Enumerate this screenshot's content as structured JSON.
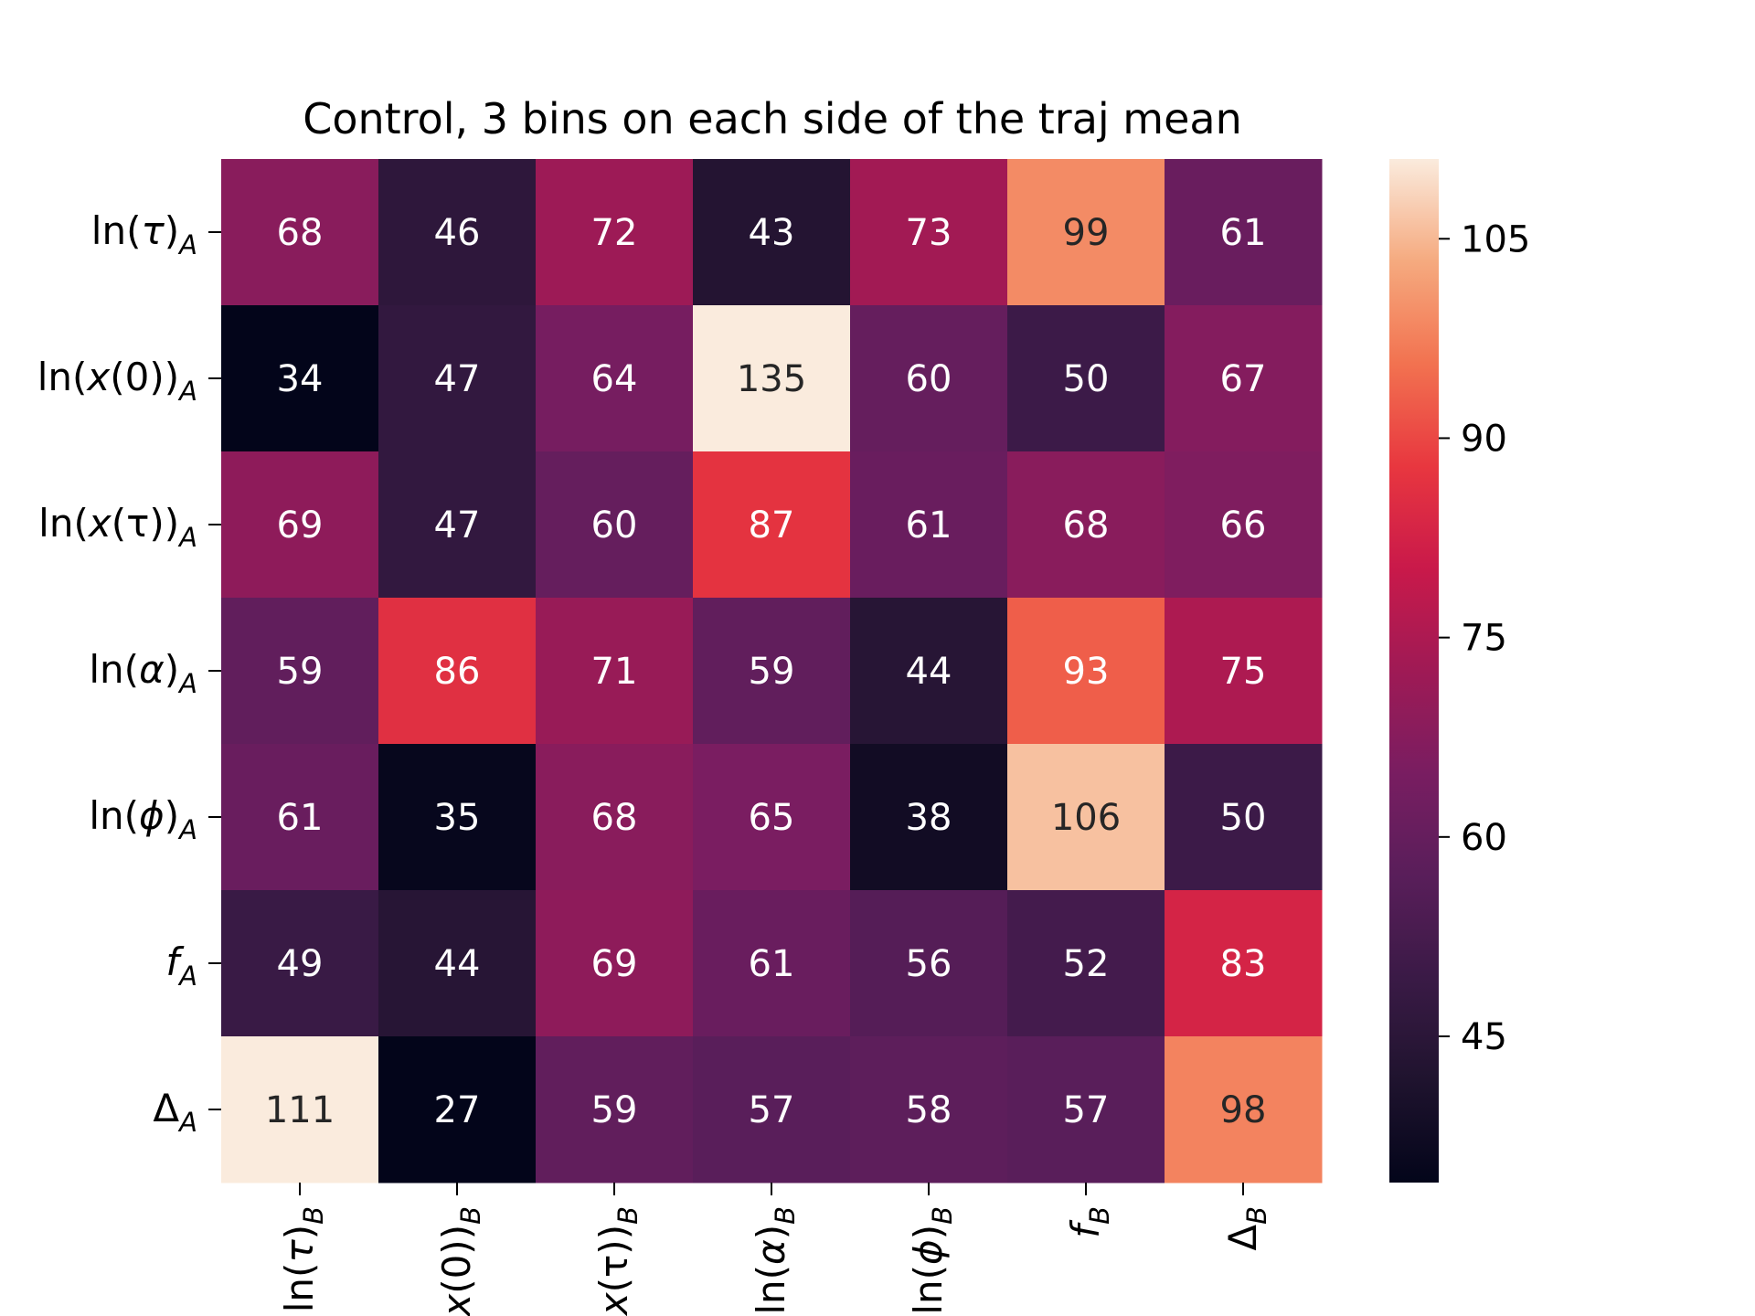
{
  "chart_data": {
    "type": "heatmap",
    "title": "Control, 3 bins on each side of the traj mean",
    "row_labels": [
      {
        "base": "ln(",
        "sym": "τ",
        "tail": ")",
        "sub": "A"
      },
      {
        "base": "ln(",
        "sym": "x",
        "tail": "(0))",
        "sub": "A"
      },
      {
        "base": "ln(",
        "sym": "x",
        "tail": "(τ))",
        "sub": "A"
      },
      {
        "base": "ln(",
        "sym": "α",
        "tail": ")",
        "sub": "A"
      },
      {
        "base": "ln(",
        "sym": "ϕ",
        "tail": ")",
        "sub": "A"
      },
      {
        "base": "",
        "sym": "f",
        "tail": "",
        "sub": "A"
      },
      {
        "base": "Δ",
        "sym": "",
        "tail": "",
        "sub": "A"
      }
    ],
    "col_labels": [
      {
        "base": "ln(",
        "sym": "τ",
        "tail": ")",
        "sub": "B"
      },
      {
        "base": "ln(",
        "sym": "x",
        "tail": "(0))",
        "sub": "B"
      },
      {
        "base": "ln(",
        "sym": "x",
        "tail": "(τ))",
        "sub": "B"
      },
      {
        "base": "ln(",
        "sym": "α",
        "tail": ")",
        "sub": "B"
      },
      {
        "base": "ln(",
        "sym": "ϕ",
        "tail": ")",
        "sub": "B"
      },
      {
        "base": "",
        "sym": "f",
        "tail": "",
        "sub": "B"
      },
      {
        "base": "Δ",
        "sym": "",
        "tail": "",
        "sub": "B"
      }
    ],
    "values": [
      [
        68,
        46,
        72,
        43,
        73,
        99,
        61
      ],
      [
        34,
        47,
        64,
        135,
        60,
        50,
        67
      ],
      [
        69,
        47,
        60,
        87,
        61,
        68,
        66
      ],
      [
        59,
        86,
        71,
        59,
        44,
        93,
        75
      ],
      [
        61,
        35,
        68,
        65,
        38,
        106,
        50
      ],
      [
        49,
        44,
        69,
        61,
        56,
        52,
        83
      ],
      [
        111,
        27,
        59,
        57,
        58,
        57,
        98
      ]
    ],
    "colorbar": {
      "vmin": 34,
      "vmax": 111,
      "ticks": [
        45,
        60,
        75,
        90,
        105
      ],
      "colormap": "rocket"
    }
  }
}
